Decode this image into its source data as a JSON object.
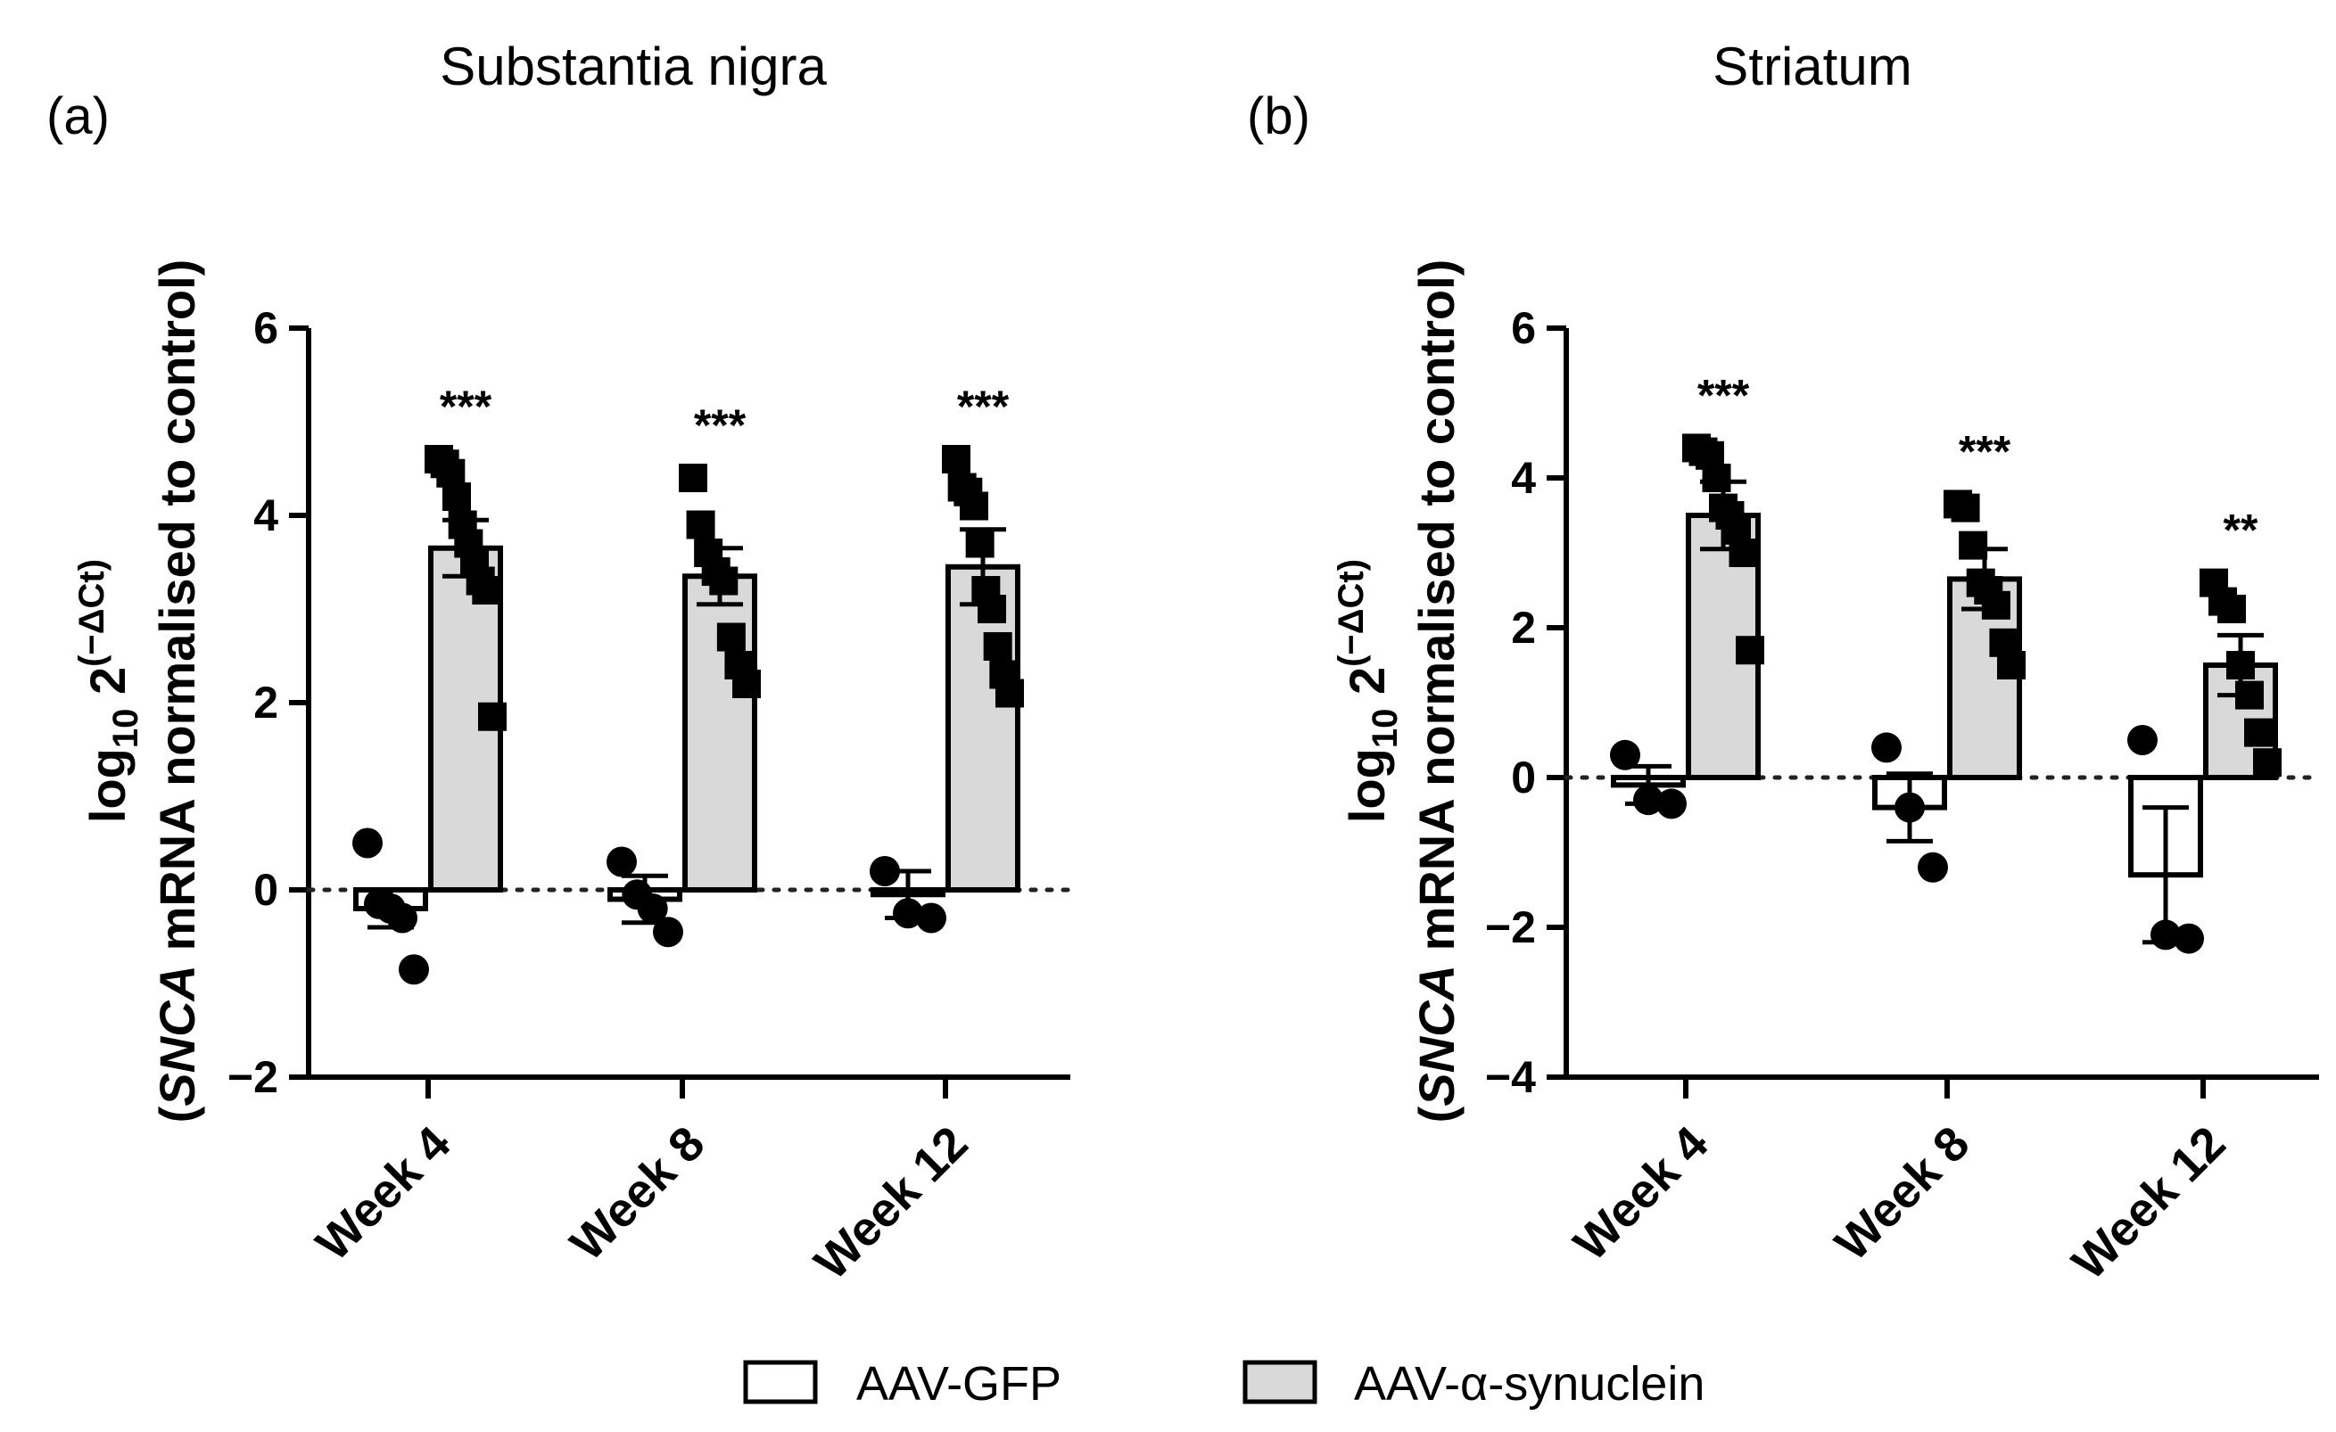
{
  "chart_data": [
    {
      "type": "bar",
      "panel": "(a)",
      "title": "Substantia nigra",
      "ylabel_parts": [
        "(",
        "SNCA",
        " mRNA normalised to control)"
      ],
      "ylabel_log": {
        "base": "log",
        "sub": "10",
        "rest": " 2",
        "sup": "(−ΔCt)"
      },
      "ylim": [
        -2,
        6
      ],
      "yticks": [
        {
          "value": -2,
          "label": "−2"
        },
        {
          "value": 0,
          "label": "0"
        },
        {
          "value": 2,
          "label": "2"
        },
        {
          "value": 4,
          "label": "4"
        },
        {
          "value": 6,
          "label": "6"
        }
      ],
      "categories": [
        "Week 4",
        "Week 8",
        "Week 12"
      ],
      "series": [
        {
          "name": "AAV-GFP",
          "marker": "circle",
          "values": [
            -0.2,
            -0.1,
            -0.05
          ],
          "errors": [
            0.2,
            0.25,
            0.25
          ],
          "points": [
            [
              0.5,
              -0.15,
              -0.2,
              -0.3,
              -0.85
            ],
            [
              0.3,
              -0.05,
              -0.2,
              -0.45
            ],
            [
              0.2,
              -0.25,
              -0.3
            ]
          ]
        },
        {
          "name": "AAV-α-synuclein",
          "marker": "square",
          "values": [
            3.65,
            3.35,
            3.45
          ],
          "errors": [
            0.3,
            0.3,
            0.4
          ],
          "points": [
            [
              4.6,
              4.55,
              4.45,
              4.2,
              3.9,
              3.7,
              3.5,
              3.3,
              3.2,
              1.85
            ],
            [
              4.4,
              3.9,
              3.6,
              3.4,
              3.3,
              2.7,
              2.4,
              2.2
            ],
            [
              4.6,
              4.3,
              4.25,
              4.1,
              3.7,
              3.2,
              3.0,
              2.6,
              2.3,
              2.1
            ]
          ]
        }
      ],
      "significance": [
        "***",
        "***",
        "***"
      ]
    },
    {
      "type": "bar",
      "panel": "(b)",
      "title": "Striatum",
      "ylabel_parts": [
        "(",
        "SNCA",
        " mRNA normalised to control)"
      ],
      "ylabel_log": {
        "base": "log",
        "sub": "10",
        "rest": " 2",
        "sup": "(−ΔCt)"
      },
      "ylim": [
        -4,
        6
      ],
      "yticks": [
        {
          "value": -4,
          "label": "−4"
        },
        {
          "value": -2,
          "label": "−2"
        },
        {
          "value": 0,
          "label": "0"
        },
        {
          "value": 2,
          "label": "2"
        },
        {
          "value": 4,
          "label": "4"
        },
        {
          "value": 6,
          "label": "6"
        }
      ],
      "categories": [
        "Week 4",
        "Week 8",
        "Week 12"
      ],
      "series": [
        {
          "name": "AAV-GFP",
          "marker": "circle",
          "values": [
            -0.1,
            -0.4,
            -1.3
          ],
          "errors": [
            0.25,
            0.45,
            0.9
          ],
          "points": [
            [
              0.3,
              -0.3,
              -0.35
            ],
            [
              0.4,
              -0.4,
              -1.2
            ],
            [
              0.5,
              -2.1,
              -2.15
            ]
          ]
        },
        {
          "name": "AAV-α-synuclein",
          "marker": "square",
          "values": [
            3.5,
            2.65,
            1.5
          ],
          "errors": [
            0.45,
            0.4,
            0.4
          ],
          "points": [
            [
              4.4,
              4.35,
              4.3,
              4.0,
              3.6,
              3.5,
              3.3,
              3.0,
              1.7
            ],
            [
              3.65,
              3.6,
              3.1,
              2.6,
              2.5,
              2.3,
              1.8,
              1.5
            ],
            [
              2.6,
              2.35,
              2.25,
              1.5,
              1.1,
              0.6,
              0.2
            ]
          ]
        }
      ],
      "significance": [
        "***",
        "***",
        "**"
      ]
    }
  ],
  "legend": [
    {
      "label": "AAV-GFP",
      "color": "#ffffff"
    },
    {
      "label": "AAV-α-synuclein",
      "color": "#d9d9d9"
    }
  ],
  "colors": {
    "gfp_fill": "#ffffff",
    "syn_fill": "#d9d9d9",
    "ink": "#000000"
  }
}
